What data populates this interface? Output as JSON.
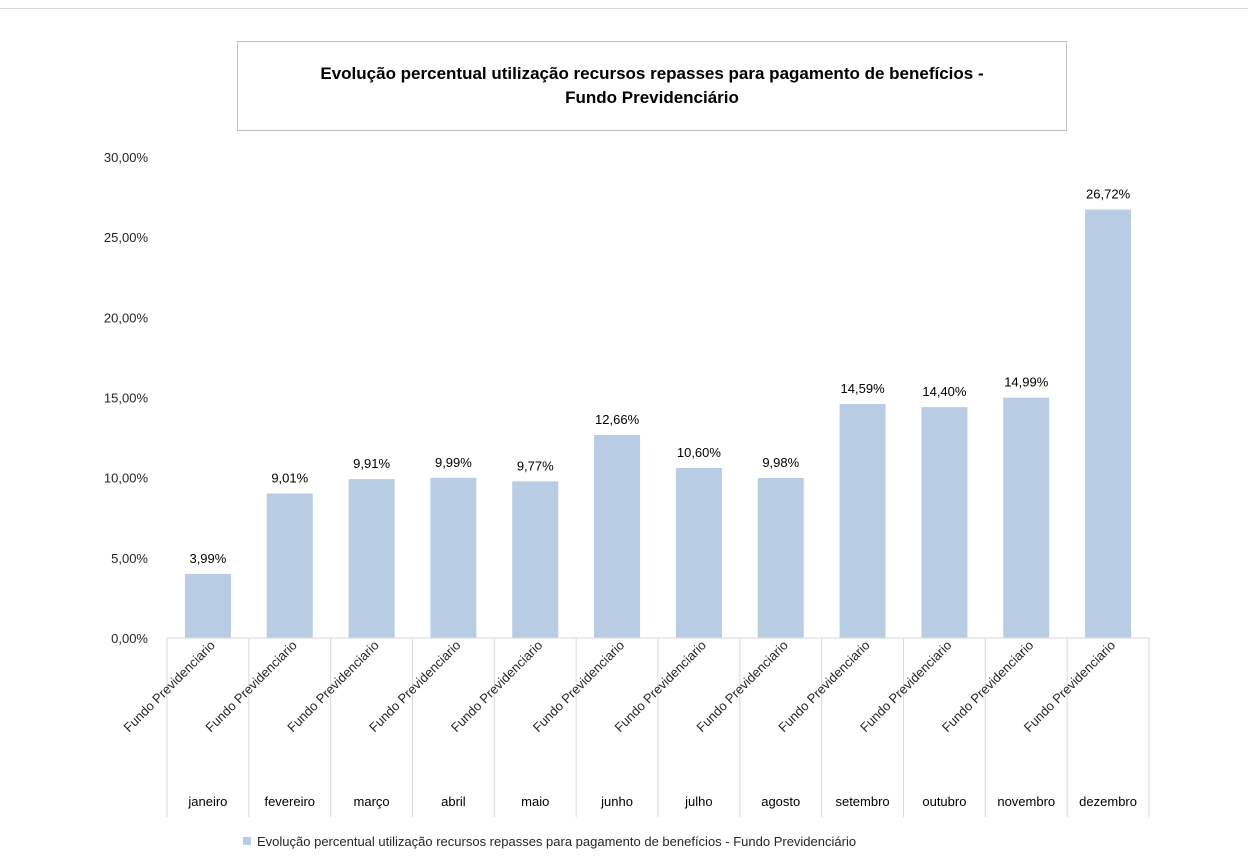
{
  "chart_data": {
    "type": "bar",
    "title_lines": [
      "Evolução percentual utilização recursos repasses para pagamento de benefícios -",
      "Fundo Previdenciário"
    ],
    "categories": [
      "janeiro",
      "fevereiro",
      "março",
      "abril",
      "maio",
      "junho",
      "julho",
      "agosto",
      "setembro",
      "outubro",
      "novembro",
      "dezembro"
    ],
    "sub_categories": [
      "Fundo Previdenciario",
      "Fundo Previdenciario",
      "Fundo Previdenciario",
      "Fundo Previdenciario",
      "Fundo Previdenciario",
      "Fundo Previdenciario",
      "Fundo Previdenciario",
      "Fundo Previdenciario",
      "Fundo Previdenciario",
      "Fundo Previdenciario",
      "Fundo Previdenciario",
      "Fundo Previdenciario"
    ],
    "values": [
      3.99,
      9.01,
      9.91,
      9.99,
      9.77,
      12.66,
      10.6,
      9.98,
      14.59,
      14.4,
      14.99,
      26.72
    ],
    "data_labels": [
      "3,99%",
      "9,01%",
      "9,91%",
      "9,99%",
      "9,77%",
      "12,66%",
      "10,60%",
      "9,98%",
      "14,59%",
      "14,40%",
      "14,99%",
      "26,72%"
    ],
    "y_ticks": [
      0,
      5,
      10,
      15,
      20,
      25,
      30
    ],
    "y_tick_labels": [
      "0,00%",
      "5,00%",
      "10,00%",
      "15,00%",
      "20,00%",
      "25,00%",
      "30,00%"
    ],
    "ylim": [
      0,
      30
    ],
    "grid": false,
    "legend_position": "bottom",
    "series": [
      {
        "name": "Evolução percentual utilização recursos repasses para pagamento de benefícios - Fundo Previdenciário",
        "values": [
          3.99,
          9.01,
          9.91,
          9.99,
          9.77,
          12.66,
          10.6,
          9.98,
          14.59,
          14.4,
          14.99,
          26.72
        ]
      }
    ],
    "colors": {
      "bar": "#b8cce4",
      "axis": "#d9d9d9",
      "text": "#000000"
    }
  }
}
